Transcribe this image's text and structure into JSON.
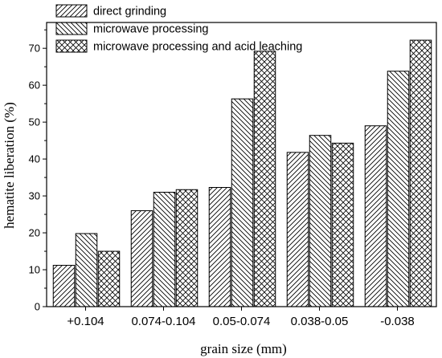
{
  "chart_data": {
    "type": "bar",
    "title": "",
    "xlabel": "grain size (mm)",
    "ylabel": "hematite liberation (%)",
    "ylim": [
      0,
      77
    ],
    "yticks": [
      0,
      10,
      20,
      30,
      40,
      50,
      60,
      70
    ],
    "grid": false,
    "legend_position": "top-left",
    "categories": [
      "+0.104",
      "0.074-0.104",
      "0.05-0.074",
      "0.038-0.05",
      "-0.038"
    ],
    "series": [
      {
        "name": "direct grinding",
        "pattern": "forward-diagonal-hatch",
        "values": [
          11.2,
          26.0,
          32.3,
          41.8,
          49.0
        ]
      },
      {
        "name": "microwave processing",
        "pattern": "back-diagonal-hatch",
        "values": [
          19.8,
          31.0,
          56.3,
          46.4,
          63.8
        ]
      },
      {
        "name": "microwave processing and acid leaching",
        "pattern": "cross-hatch",
        "values": [
          15.0,
          31.7,
          69.2,
          44.3,
          72.2
        ]
      }
    ]
  }
}
